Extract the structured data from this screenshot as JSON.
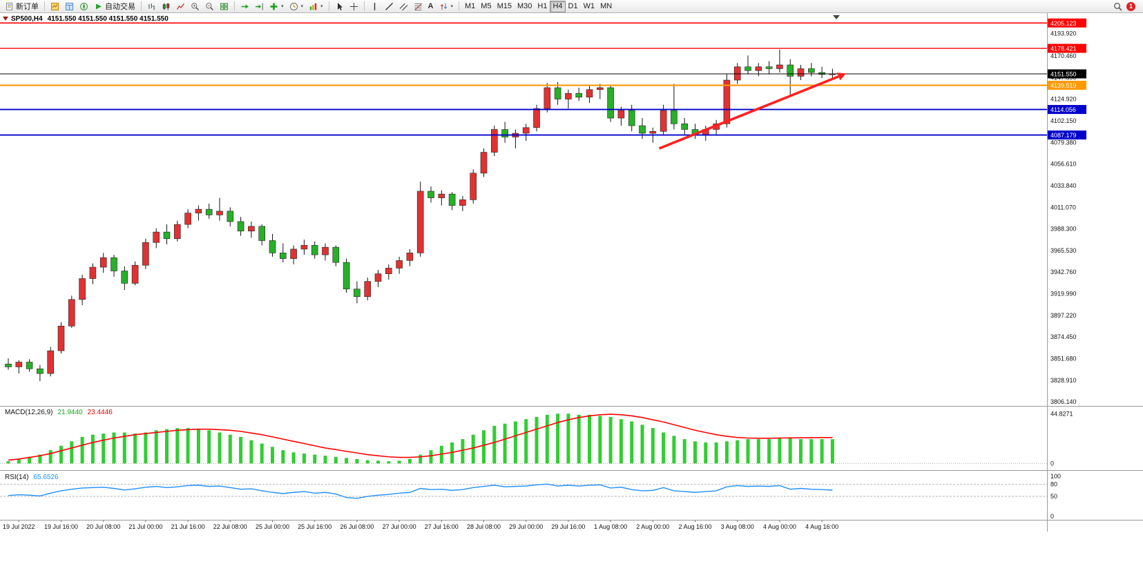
{
  "toolbar": {
    "new_order_label": "新订单",
    "autotrade_label": "自动交易",
    "text_tool_label": "A",
    "timeframes": [
      "M1",
      "M5",
      "M15",
      "M30",
      "H1",
      "H4",
      "D1",
      "W1",
      "MN"
    ],
    "active_timeframe": "H4",
    "notification_count": "1"
  },
  "chart_window": {
    "symbol_period": "SP500,H4",
    "ohlc_text": "4151.550 4151.550 4151.550 4151.550"
  },
  "colors": {
    "bull_candle": "#e03232",
    "bear_candle": "#28b028",
    "macd_histogram": "#32cd32",
    "macd_signal": "#ff0000",
    "rsi_line": "#1e90ff",
    "arrow": "#ff2020",
    "level_red": "#ff0000",
    "level_orange": "#ff9900",
    "level_blue": "#0000cd",
    "current_price": "#000000"
  },
  "chart_data": {
    "type": "candlestick",
    "symbol": "SP500",
    "timeframe": "H4",
    "title": "SP500,H4 4151.550 4151.550 4151.550 4151.550",
    "price_axis": {
      "max": 4206.8,
      "min": 3801.9,
      "labels": [
        "4193.920",
        "4170.460",
        "4147.690",
        "4124.920",
        "4102.150",
        "4079.380",
        "4056.610",
        "4033.840",
        "4011.070",
        "3988.300",
        "3965.530",
        "3942.760",
        "3919.990",
        "3897.220",
        "3874.450",
        "3851.680",
        "3828.910",
        "3806.140"
      ]
    },
    "time_axis": {
      "labels": [
        "19 Jul 2022",
        "19 Jul 16:00",
        "20 Jul 08:00",
        "21 Jul 00:00",
        "21 Jul 16:00",
        "22 Jul 08:00",
        "25 Jul 00:00",
        "25 Jul 16:00",
        "26 Jul 08:00",
        "27 Jul 00:00",
        "27 Jul 16:00",
        "28 Jul 08:00",
        "29 Jul 00:00",
        "29 Jul 16:00",
        "1 Aug 08:00",
        "2 Aug 00:00",
        "2 Aug 16:00",
        "3 Aug 08:00",
        "4 Aug 00:00",
        "4 Aug 16:00"
      ],
      "first_label_bar": 1,
      "bar_step": 4
    },
    "candles": [
      [
        3846,
        3852,
        3840,
        3843
      ],
      [
        3843,
        3850,
        3836,
        3848
      ],
      [
        3848,
        3851,
        3838,
        3841
      ],
      [
        3841,
        3845,
        3828,
        3836
      ],
      [
        3836,
        3864,
        3833,
        3860
      ],
      [
        3860,
        3890,
        3857,
        3886
      ],
      [
        3886,
        3918,
        3884,
        3914
      ],
      [
        3914,
        3940,
        3908,
        3936
      ],
      [
        3936,
        3952,
        3930,
        3948
      ],
      [
        3948,
        3963,
        3942,
        3958
      ],
      [
        3958,
        3961,
        3938,
        3944
      ],
      [
        3944,
        3949,
        3924,
        3931
      ],
      [
        3931,
        3954,
        3929,
        3950
      ],
      [
        3950,
        3978,
        3946,
        3974
      ],
      [
        3974,
        3989,
        3968,
        3985
      ],
      [
        3985,
        3993,
        3972,
        3978
      ],
      [
        3978,
        3997,
        3975,
        3993
      ],
      [
        3993,
        4009,
        3989,
        4005
      ],
      [
        4005,
        4013,
        3997,
        4009
      ],
      [
        4009,
        4015,
        3999,
        4003
      ],
      [
        4003,
        4021,
        3997,
        4007
      ],
      [
        4007,
        4011,
        3991,
        3996
      ],
      [
        3996,
        4001,
        3981,
        3986
      ],
      [
        3986,
        3996,
        3979,
        3991
      ],
      [
        3991,
        3993,
        3971,
        3976
      ],
      [
        3976,
        3983,
        3959,
        3963
      ],
      [
        3963,
        3973,
        3953,
        3957
      ],
      [
        3957,
        3971,
        3951,
        3967
      ],
      [
        3967,
        3977,
        3961,
        3971
      ],
      [
        3971,
        3975,
        3957,
        3961
      ],
      [
        3961,
        3973,
        3955,
        3969
      ],
      [
        3969,
        3971,
        3949,
        3953
      ],
      [
        3953,
        3957,
        3921,
        3925
      ],
      [
        3925,
        3933,
        3910,
        3917
      ],
      [
        3917,
        3937,
        3913,
        3933
      ],
      [
        3933,
        3945,
        3927,
        3941
      ],
      [
        3941,
        3951,
        3935,
        3947
      ],
      [
        3947,
        3959,
        3941,
        3955
      ],
      [
        3955,
        3967,
        3949,
        3963
      ],
      [
        3963,
        4038,
        3959,
        4028
      ],
      [
        4028,
        4033,
        4016,
        4021
      ],
      [
        4021,
        4029,
        4013,
        4025
      ],
      [
        4025,
        4027,
        4008,
        4013
      ],
      [
        4013,
        4023,
        4007,
        4019
      ],
      [
        4019,
        4051,
        4015,
        4047
      ],
      [
        4047,
        4073,
        4043,
        4069
      ],
      [
        4069,
        4097,
        4065,
        4093
      ],
      [
        4093,
        4101,
        4079,
        4085
      ],
      [
        4085,
        4093,
        4073,
        4089
      ],
      [
        4089,
        4099,
        4081,
        4095
      ],
      [
        4095,
        4119,
        4091,
        4115
      ],
      [
        4115,
        4142,
        4111,
        4137
      ],
      [
        4137,
        4143,
        4119,
        4125
      ],
      [
        4125,
        4135,
        4115,
        4131
      ],
      [
        4131,
        4137,
        4123,
        4127
      ],
      [
        4127,
        4139,
        4121,
        4135
      ],
      [
        4135,
        4141,
        4125,
        4137
      ],
      [
        4137,
        4139,
        4101,
        4105
      ],
      [
        4105,
        4117,
        4097,
        4113
      ],
      [
        4113,
        4119,
        4091,
        4097
      ],
      [
        4097,
        4105,
        4083,
        4089
      ],
      [
        4089,
        4095,
        4079,
        4091
      ],
      [
        4091,
        4119,
        4087,
        4113
      ],
      [
        4113,
        4141,
        4093,
        4099
      ],
      [
        4099,
        4105,
        4087,
        4093
      ],
      [
        4093,
        4099,
        4083,
        4087
      ],
      [
        4087,
        4097,
        4081,
        4093
      ],
      [
        4093,
        4103,
        4087,
        4099
      ],
      [
        4099,
        4151,
        4095,
        4145
      ],
      [
        4145,
        4163,
        4141,
        4159
      ],
      [
        4159,
        4171,
        4151,
        4155
      ],
      [
        4155,
        4163,
        4149,
        4159
      ],
      [
        4159,
        4165,
        4151,
        4157
      ],
      [
        4157,
        4177,
        4153,
        4161
      ],
      [
        4161,
        4167,
        4129,
        4149
      ],
      [
        4149,
        4161,
        4145,
        4157
      ],
      [
        4157,
        4163,
        4149,
        4153
      ],
      [
        4153,
        4159,
        4147,
        4151
      ],
      [
        4151,
        4157,
        4146,
        4151.55
      ]
    ],
    "hlines": [
      {
        "price": 4205.123,
        "label": "4205.123",
        "color": "#ff0000",
        "width": 1.6
      },
      {
        "price": 4178.421,
        "label": "4178.421",
        "color": "#ff0000",
        "width": 1.4
      },
      {
        "price": 4151.55,
        "label": "4151.550",
        "color": "#000000",
        "width": 1
      },
      {
        "price": 4139.519,
        "label": "4139.519",
        "color": "#ff9900",
        "width": 2.2
      },
      {
        "price": 4114.056,
        "label": "4114.056",
        "color": "#0000cd",
        "width": 1.8
      },
      {
        "price": 4087.179,
        "label": "4087.179",
        "color": "#0000cd",
        "width": 1.8
      }
    ],
    "annotations": [
      {
        "type": "arrow",
        "from_bar": 61.6,
        "from_price": 4073,
        "to_bar": 79.3,
        "to_price": 4152,
        "color": "#ff2020",
        "width": 3.6
      }
    ],
    "indicators": {
      "macd": {
        "label": "MACD(12,26,9)",
        "value": "21.9440",
        "signal_value": "23.4446",
        "ylim": [
          -6,
          52
        ],
        "axis_labels": [
          {
            "text": "44.8271",
            "value": 44.8271
          },
          {
            "text": "0",
            "value": 0
          }
        ],
        "histogram": [
          2,
          4,
          6,
          8,
          12,
          16,
          20,
          24,
          26,
          27,
          28,
          28,
          27,
          28,
          30,
          31,
          32,
          32,
          31,
          30,
          28,
          26,
          24,
          21,
          18,
          15,
          12,
          10,
          9,
          8,
          7,
          6,
          5,
          4,
          3,
          2.5,
          2,
          2.5,
          4,
          8,
          12,
          16,
          19,
          22,
          26,
          30,
          34,
          36,
          38,
          40,
          42,
          44,
          45,
          45,
          44,
          44,
          43,
          42,
          40,
          38,
          35,
          32,
          28,
          25,
          22,
          20,
          19,
          19,
          20,
          21,
          22,
          22,
          22,
          23,
          23,
          22,
          22,
          22,
          21.9
        ],
        "signal": [
          3,
          4,
          5.5,
          7,
          9,
          11.5,
          14,
          16.5,
          19,
          21,
          23,
          24.5,
          26,
          27,
          28,
          29,
          30,
          30.5,
          31,
          31,
          30.5,
          30,
          29,
          27.5,
          26,
          24,
          22,
          20,
          18,
          16,
          14,
          12.5,
          11,
          9.5,
          8,
          7,
          6,
          5.5,
          5.5,
          6,
          7,
          8.5,
          10,
          12,
          14,
          16.5,
          19,
          22,
          25,
          28,
          31,
          34,
          37,
          39.5,
          41.5,
          43,
          44,
          44.5,
          44,
          43,
          41.5,
          39.5,
          37.5,
          35,
          32.5,
          30,
          28,
          26,
          24.5,
          23.5,
          23,
          22.8,
          22.8,
          23,
          23.1,
          23.2,
          23.3,
          23.4,
          23.4
        ]
      },
      "rsi": {
        "label": "RSI(14)",
        "value": "65.6526",
        "ylim": [
          -9,
          116
        ],
        "levels": [
          80,
          50
        ],
        "axis_labels": [
          {
            "text": "100",
            "value": 100
          },
          {
            "text": "80",
            "value": 80
          },
          {
            "text": "50",
            "value": 50
          },
          {
            "text": "0",
            "value": 0
          }
        ],
        "values": [
          52,
          54,
          53,
          51,
          58,
          64,
          68,
          71,
          72,
          73,
          70,
          66,
          69,
          73,
          75,
          72,
          74,
          77,
          78,
          75,
          76,
          72,
          68,
          69,
          64,
          60,
          57,
          60,
          62,
          58,
          60,
          56,
          47,
          45,
          50,
          53,
          55,
          58,
          60,
          70,
          67,
          68,
          65,
          67,
          72,
          75,
          78,
          74,
          75,
          76,
          79,
          81,
          76,
          78,
          76,
          78,
          79,
          71,
          73,
          67,
          64,
          65,
          72,
          64,
          62,
          60,
          62,
          64,
          74,
          77,
          75,
          76,
          75,
          77,
          68,
          70,
          68,
          67,
          65.65
        ]
      }
    }
  }
}
